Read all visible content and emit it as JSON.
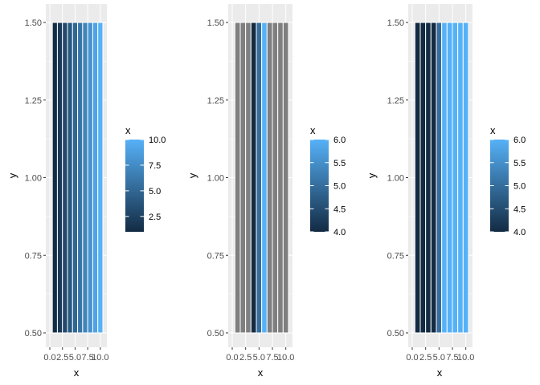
{
  "chart_data": [
    {
      "type": "heatmap",
      "x": [
        1,
        2,
        3,
        4,
        5,
        6,
        7,
        8,
        9,
        10
      ],
      "y": 1,
      "fill_values": [
        1,
        2,
        3,
        4,
        5,
        6,
        7,
        8,
        9,
        10
      ],
      "xlabel": "x",
      "ylabel": "y",
      "xlim": [
        0,
        10.5
      ],
      "ylim": [
        0.5,
        1.5
      ],
      "x_ticks": [
        0,
        2.5,
        5,
        7.5,
        10
      ],
      "x_tick_labels": [
        "0.0",
        "2.5",
        "5.0",
        "7.5",
        "10.0"
      ],
      "y_ticks": [
        0.5,
        0.75,
        1.0,
        1.25,
        1.5
      ],
      "y_tick_labels": [
        "0.50",
        "0.75",
        "1.00",
        "1.25",
        "1.50"
      ],
      "legend": {
        "title": "x",
        "limits": [
          1,
          10
        ],
        "breaks": [
          2.5,
          5,
          7.5,
          10
        ],
        "labels": [
          "2.5",
          "5.0",
          "7.5",
          "10.0"
        ],
        "placement": "right"
      },
      "grid": true,
      "out_of_range_color": null
    },
    {
      "type": "heatmap",
      "x": [
        1,
        2,
        3,
        4,
        5,
        6,
        7,
        8,
        9,
        10
      ],
      "y": 1,
      "fill_values": [
        1,
        2,
        3,
        4,
        5,
        6,
        7,
        8,
        9,
        10
      ],
      "xlabel": "x",
      "ylabel": "y",
      "xlim": [
        0,
        10.5
      ],
      "ylim": [
        0.5,
        1.5
      ],
      "x_ticks": [
        0,
        2.5,
        5,
        7.5,
        10
      ],
      "x_tick_labels": [
        "0.0",
        "2.5",
        "5.0",
        "7.5",
        "10.0"
      ],
      "y_ticks": [
        0.5,
        0.75,
        1.0,
        1.25,
        1.5
      ],
      "y_tick_labels": [
        "0.50",
        "0.75",
        "1.00",
        "1.25",
        "1.50"
      ],
      "legend": {
        "title": "x",
        "limits": [
          4,
          6
        ],
        "breaks": [
          4.0,
          4.5,
          5.0,
          5.5,
          6.0
        ],
        "labels": [
          "4.0",
          "4.5",
          "5.0",
          "5.5",
          "6.0"
        ],
        "placement": "right"
      },
      "grid": true,
      "out_of_range_color": "#7f7f7f"
    },
    {
      "type": "heatmap",
      "x": [
        1,
        2,
        3,
        4,
        5,
        6,
        7,
        8,
        9,
        10
      ],
      "y": 1,
      "fill_values": [
        1,
        2,
        3,
        4,
        5,
        6,
        7,
        8,
        9,
        10
      ],
      "xlabel": "x",
      "ylabel": "y",
      "xlim": [
        0,
        10.5
      ],
      "ylim": [
        0.5,
        1.5
      ],
      "x_ticks": [
        0,
        2.5,
        5,
        7.5,
        10
      ],
      "x_tick_labels": [
        "0.0",
        "2.5",
        "5.0",
        "7.5",
        "10.0"
      ],
      "y_ticks": [
        0.5,
        0.75,
        1.0,
        1.25,
        1.5
      ],
      "y_tick_labels": [
        "0.50",
        "0.75",
        "1.00",
        "1.25",
        "1.50"
      ],
      "legend": {
        "title": "x",
        "limits": [
          4,
          6
        ],
        "breaks": [
          4.0,
          4.5,
          5.0,
          5.5,
          6.0
        ],
        "labels": [
          "4.0",
          "4.5",
          "5.0",
          "5.5",
          "6.0"
        ],
        "placement": "right"
      },
      "grid": true,
      "out_of_range_color": "squish"
    }
  ],
  "colors": {
    "panel_background": "#ebebeb",
    "gridline": "#ffffff",
    "gradient_low": "#132b43",
    "gradient_high": "#56b1f7",
    "na_gray": "#7f7f7f",
    "tile_border": "#ffffff"
  }
}
